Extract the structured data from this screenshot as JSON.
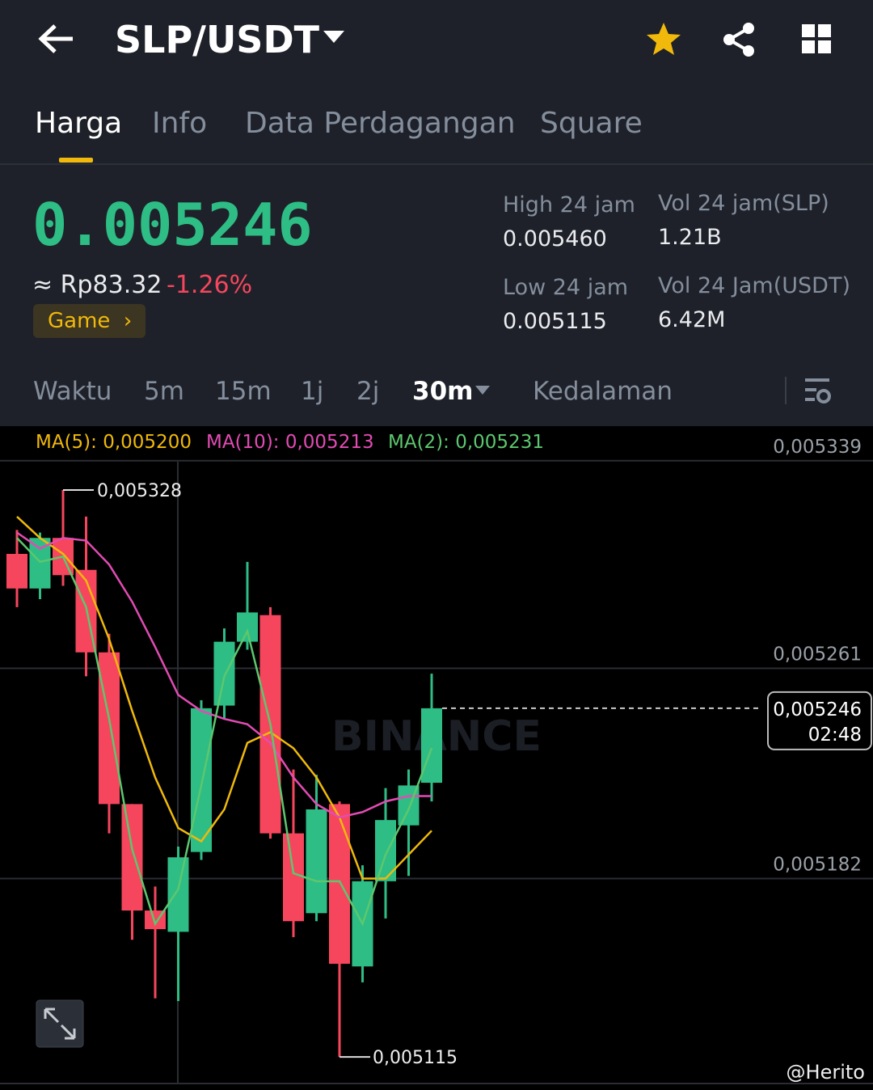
{
  "header": {
    "pair": "SLP/USDT"
  },
  "tabs": [
    "Harga",
    "Info",
    "Data Perdagangan",
    "Square"
  ],
  "price": {
    "last": "0.005246",
    "fiat": "≈ Rp83.32",
    "change": "-1.26%",
    "tag": "Game"
  },
  "stats": [
    {
      "label": "High 24 jam",
      "value": "0.005460"
    },
    {
      "label": "Vol 24 jam(SLP)",
      "value": "1.21B"
    },
    {
      "label": "Low 24 jam",
      "value": "0.005115"
    },
    {
      "label": "Vol 24 Jam(USDT)",
      "value": "6.42M"
    }
  ],
  "intervals": [
    "Waktu",
    "5m",
    "15m",
    "1j",
    "2j",
    "30m",
    "Kedalaman"
  ],
  "chart_data": {
    "type": "candlestick",
    "ma_legend": [
      "MA(5): 0,005200",
      "MA(10): 0,005213",
      "MA(2): 0,005231"
    ],
    "watermark": "BINANCE",
    "open": [
      0.005304,
      0.005291,
      0.00531,
      0.005298,
      0.005267,
      0.00521,
      0.00517,
      0.005162,
      0.005192,
      0.005247,
      0.005271,
      0.005281,
      0.005199,
      0.005169,
      0.00521,
      0.005149,
      0.005181,
      0.005202,
      0.005218
    ],
    "high": [
      0.005313,
      0.005312,
      0.005328,
      0.005318,
      0.005274,
      0.00521,
      0.005179,
      0.005194,
      0.005249,
      0.005276,
      0.005301,
      0.005284,
      0.005223,
      0.005221,
      0.005211,
      0.005187,
      0.005216,
      0.005223,
      0.005259
    ],
    "low": [
      0.005284,
      0.005287,
      0.005292,
      0.005258,
      0.005199,
      0.005159,
      0.005137,
      0.005136,
      0.005189,
      0.005242,
      0.005268,
      0.005197,
      0.00516,
      0.005166,
      0.005115,
      0.005143,
      0.005167,
      0.005183,
      0.005211
    ],
    "close": [
      0.005291,
      0.00531,
      0.005296,
      0.005267,
      0.00521,
      0.00517,
      0.005163,
      0.00519,
      0.005246,
      0.005271,
      0.005282,
      0.005199,
      0.005166,
      0.005208,
      0.00515,
      0.005181,
      0.005204,
      0.005217,
      0.005246
    ],
    "up_color": "#2ebd85",
    "down_color": "#f6465d",
    "series": [
      {
        "name": "MA(5)",
        "color": "#f0b90b",
        "values": [
          0.005318,
          0.00531,
          0.005304,
          0.005294,
          0.005272,
          0.005245,
          0.00522,
          0.005201,
          0.005196,
          0.005208,
          0.005233,
          0.005237,
          0.005231,
          0.00522,
          0.005205,
          0.005182,
          0.005182,
          0.005191,
          0.0052
        ]
      },
      {
        "name": "MA(10)",
        "color": "#e24bb4",
        "values": [
          0.005312,
          0.005306,
          0.00531,
          0.005309,
          0.0053,
          0.005286,
          0.005269,
          0.005251,
          0.005245,
          0.005242,
          0.00524,
          0.005233,
          0.00522,
          0.00521,
          0.005205,
          0.005207,
          0.005211,
          0.005213,
          0.005213
        ]
      },
      {
        "name": "MA(2)",
        "color": "#5cc76e",
        "values": [
          0.00531,
          0.005301,
          0.005303,
          0.005284,
          0.005242,
          0.005193,
          0.005165,
          0.005178,
          0.005217,
          0.005258,
          0.005275,
          0.00524,
          0.005184,
          0.005181,
          0.005181,
          0.005165,
          0.005191,
          0.005208,
          0.005231
        ]
      }
    ],
    "ylim": [
      0.005105,
      0.005352
    ],
    "yticks": [
      {
        "value": 0.005339,
        "label": "0,005339"
      },
      {
        "value": 0.005261,
        "label": "0,005261"
      },
      {
        "value": 0.005182,
        "label": "0,005182"
      }
    ],
    "grid": true,
    "high_marker": {
      "value": 0.005328,
      "label": "0,005328"
    },
    "low_marker": {
      "value": 0.005115,
      "label": "0,005115"
    },
    "last_marker": {
      "value": 0.005246,
      "label": "0,005246",
      "countdown": "02:48"
    }
  },
  "watermark": "@Herito"
}
